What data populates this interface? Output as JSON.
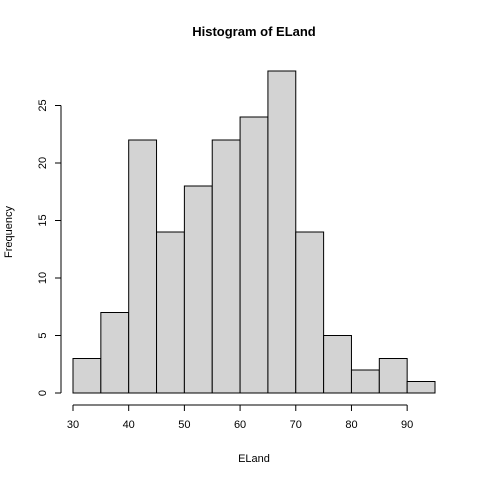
{
  "chart_data": {
    "type": "bar",
    "title": "Histogram of ELand",
    "xlabel": "ELand",
    "ylabel": "Frequency",
    "bin_edges": [
      30,
      35,
      40,
      45,
      50,
      55,
      60,
      65,
      70,
      75,
      80,
      85,
      90,
      95
    ],
    "values": [
      3,
      7,
      22,
      14,
      18,
      22,
      24,
      28,
      14,
      5,
      2,
      3,
      1
    ],
    "xlim": [
      30,
      95
    ],
    "ylim": [
      0,
      28
    ],
    "x_ticks": [
      30,
      40,
      50,
      60,
      70,
      80,
      90
    ],
    "y_ticks": [
      0,
      5,
      10,
      15,
      20,
      25
    ],
    "x_tick_labels": [
      "30",
      "40",
      "50",
      "60",
      "70",
      "80",
      "90"
    ],
    "y_tick_labels": [
      "0",
      "5",
      "10",
      "15",
      "20",
      "25"
    ],
    "bar_color": "#d3d3d3",
    "edge_color": "#000000",
    "grid": false
  }
}
